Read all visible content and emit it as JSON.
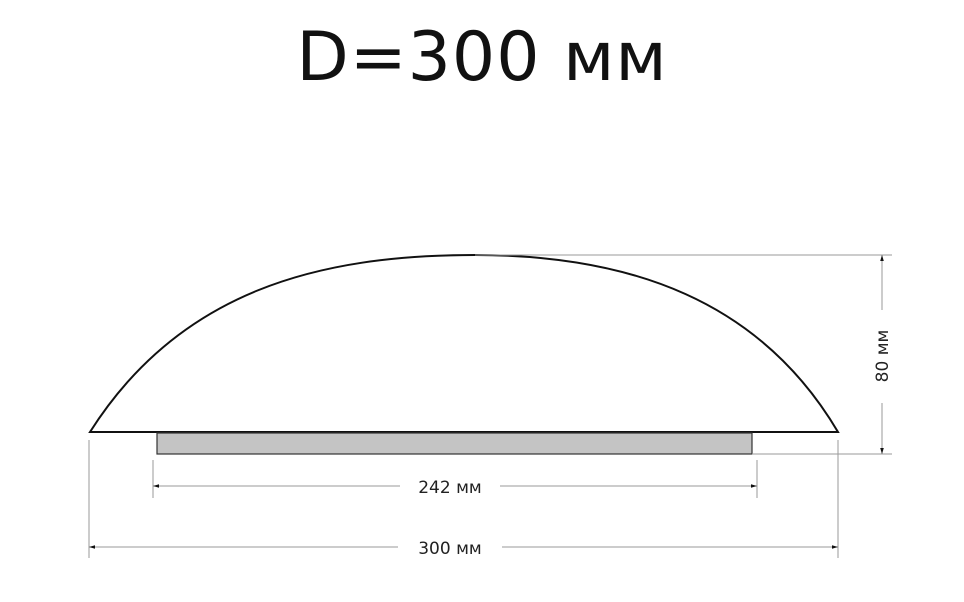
{
  "title": "D=300 мм",
  "dimensions": {
    "inner_width": "242 мм",
    "outer_width": "300 мм",
    "height": "80 мм"
  },
  "colors": {
    "outline": "#111111",
    "base_fill": "#c4c4c4",
    "dimension_line": "#9a9a9a"
  }
}
